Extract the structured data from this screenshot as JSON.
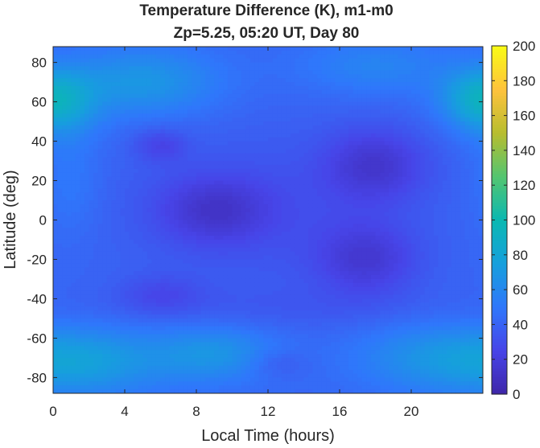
{
  "chart_data": {
    "type": "heatmap",
    "title": "Temperature Difference (K), m1-m0",
    "subtitle": "Zp=5.25, 05:20 UT, Day 80",
    "xlabel": "Local Time (hours)",
    "ylabel": "Latitude (deg)",
    "xlim": [
      0,
      24
    ],
    "ylim": [
      -88,
      88
    ],
    "xticks": [
      0,
      4,
      8,
      12,
      16,
      20
    ],
    "yticks": [
      -80,
      -60,
      -40,
      -20,
      0,
      20,
      40,
      60,
      80
    ],
    "colorbar": {
      "min": 0,
      "max": 200,
      "ticks": [
        0,
        20,
        40,
        60,
        80,
        100,
        120,
        140,
        160,
        180,
        200
      ],
      "colormap": "parula"
    },
    "colormap_stops": [
      "#3e26a8",
      "#4744e8",
      "#2f77fb",
      "#169fdd",
      "#0ab8b2",
      "#53c570",
      "#b7bd2f",
      "#fec23c",
      "#f9fb15"
    ],
    "field": {
      "background": 42,
      "features": [
        {
          "x": 9,
          "y": 5,
          "sx": 2.2,
          "sy": 12,
          "a": -22
        },
        {
          "x": 18,
          "y": 28,
          "sx": 2.0,
          "sy": 13,
          "a": -24
        },
        {
          "x": 17.5,
          "y": -20,
          "sx": 2.0,
          "sy": 13,
          "a": -22
        },
        {
          "x": 6,
          "y": 38,
          "sx": 1.0,
          "sy": 6,
          "a": -15
        },
        {
          "x": 12,
          "y": 5,
          "sx": 6,
          "sy": 30,
          "a": -10
        },
        {
          "x": 6,
          "y": -38,
          "sx": 1.6,
          "sy": 7,
          "a": -12
        },
        {
          "x": 12.5,
          "y": -73,
          "sx": 1.2,
          "sy": 5,
          "a": -10
        },
        {
          "x": 12,
          "y": -45,
          "sx": 8,
          "sy": 8,
          "a": -5
        },
        {
          "x": 5,
          "y": 70,
          "sx": 3,
          "sy": 12,
          "a": 28
        },
        {
          "x": 0.5,
          "y": 58,
          "sx": 1.5,
          "sy": 12,
          "a": 24
        },
        {
          "x": 23.5,
          "y": 62,
          "sx": 1.5,
          "sy": 10,
          "a": 26
        },
        {
          "x": 18,
          "y": 78,
          "sx": 3,
          "sy": 10,
          "a": 16
        },
        {
          "x": 1,
          "y": 20,
          "sx": 1.2,
          "sy": 20,
          "a": 10
        },
        {
          "x": 2,
          "y": -72,
          "sx": 3,
          "sy": 12,
          "a": 30
        },
        {
          "x": 9,
          "y": -68,
          "sx": 2.5,
          "sy": 10,
          "a": 26
        },
        {
          "x": 21,
          "y": -70,
          "sx": 3,
          "sy": 12,
          "a": 22
        }
      ]
    }
  }
}
